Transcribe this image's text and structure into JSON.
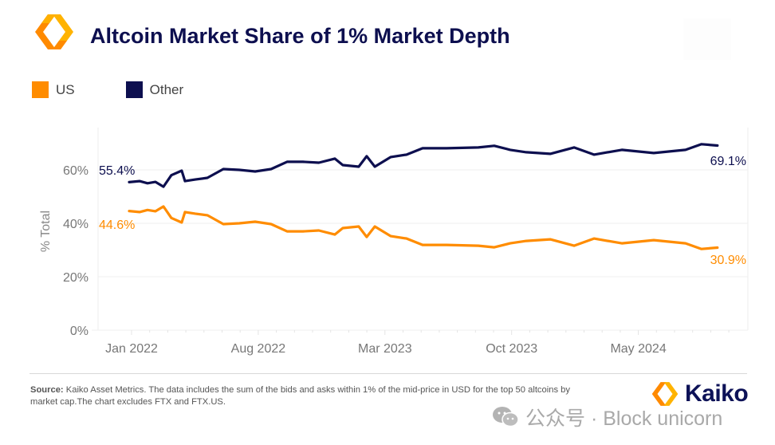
{
  "header": {
    "title": "Altcoin Market Share of 1% Market Depth",
    "logo": "kaiko-logo-icon"
  },
  "legend": [
    {
      "label": "US",
      "color": "#ff8c00"
    },
    {
      "label": "Other",
      "color": "#0d0f4f"
    }
  ],
  "footer": {
    "source_label": "Source:",
    "source_text": " Kaiko Asset Metrics. The data includes the sum of the bids and asks within 1% of the mid-price in USD for the top 50 altcoins by market cap.The chart excludes FTX and FTX.US.",
    "brand": "Kaiko",
    "watermark": "公众号 · Block unicorn"
  },
  "chart_data": {
    "type": "line",
    "title": "Altcoin Market Share of 1% Market Depth",
    "xlabel": "",
    "ylabel": "% Total",
    "ylim": [
      0,
      72
    ],
    "yticks": [
      0,
      20,
      40,
      60
    ],
    "ytick_labels": [
      "0%",
      "20%",
      "40%",
      "60%"
    ],
    "xlim_months": [
      -0.5,
      33.5
    ],
    "xticks_months": [
      0,
      7,
      14,
      21,
      28
    ],
    "xtick_labels": [
      "Jan 2022",
      "Aug 2022",
      "Mar 2023",
      "Oct 2023",
      "May 2024"
    ],
    "grid": "horizontal",
    "legend_position": "top-left",
    "x_unit": "months since Jan 2022",
    "x": [
      -0.13,
      0.44,
      0.88,
      1.32,
      1.76,
      2.2,
      2.77,
      2.95,
      3.52,
      4.19,
      5.07,
      5.95,
      6.83,
      7.71,
      8.59,
      9.47,
      10.35,
      11.23,
      11.67,
      12.55,
      12.99,
      13.44,
      14.32,
      15.2,
      16.08,
      17.4,
      19.16,
      20.04,
      20.92,
      21.81,
      23.13,
      24.45,
      25.55,
      27.09,
      28.85,
      30.61,
      31.49,
      32.37
    ],
    "series": [
      {
        "name": "US",
        "color": "#ff8c00",
        "values": [
          44.6,
          44.2,
          45.0,
          44.5,
          46.3,
          42.0,
          40.3,
          44.2,
          43.6,
          43.0,
          39.7,
          40.0,
          40.6,
          39.7,
          37.0,
          37.0,
          37.3,
          35.8,
          38.2,
          38.8,
          34.9,
          38.8,
          35.2,
          34.3,
          31.9,
          31.9,
          31.6,
          31.0,
          32.5,
          33.4,
          34.0,
          31.6,
          34.3,
          32.5,
          33.7,
          32.5,
          30.4,
          30.9
        ],
        "end_labels": [
          "44.6%",
          "30.9%"
        ]
      },
      {
        "name": "Other",
        "color": "#0d0f4f",
        "values": [
          55.4,
          55.8,
          55.0,
          55.5,
          53.7,
          58.0,
          59.7,
          55.8,
          56.4,
          57.0,
          60.3,
          60.0,
          59.4,
          60.3,
          63.0,
          63.0,
          62.7,
          64.2,
          61.8,
          61.2,
          65.1,
          61.2,
          64.8,
          65.7,
          68.1,
          68.1,
          68.4,
          69.0,
          67.5,
          66.6,
          66.0,
          68.4,
          65.7,
          67.5,
          66.3,
          67.5,
          69.6,
          69.1
        ],
        "end_labels": [
          "55.4%",
          "69.1%"
        ]
      }
    ]
  }
}
